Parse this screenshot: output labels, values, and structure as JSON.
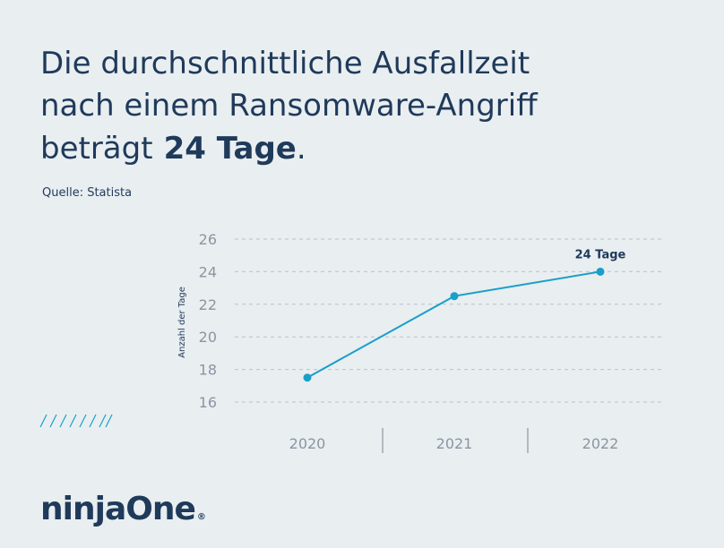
{
  "chart_data": {
    "type": "line",
    "title_lines": [
      "Die durchschnittliche Ausfallzeit",
      "nach einem Ransomware-Angriff"
    ],
    "title_last": "beträgt",
    "title_highlight": "24 Tage",
    "title_end": ".",
    "source": "Quelle: Statista",
    "y_label": "Anzahl der Tage",
    "categories": [
      "2020",
      "2021",
      "2022"
    ],
    "values": [
      17.5,
      22.5,
      24
    ],
    "value_labels": [
      null,
      null,
      "24 Tage"
    ],
    "color": "#1a9fc9",
    "ylim": [
      16,
      26
    ],
    "yticks": [
      16,
      18,
      20,
      22,
      24,
      26
    ],
    "grid": true,
    "brand": "ninjaOne",
    "brand_mark": "®"
  }
}
